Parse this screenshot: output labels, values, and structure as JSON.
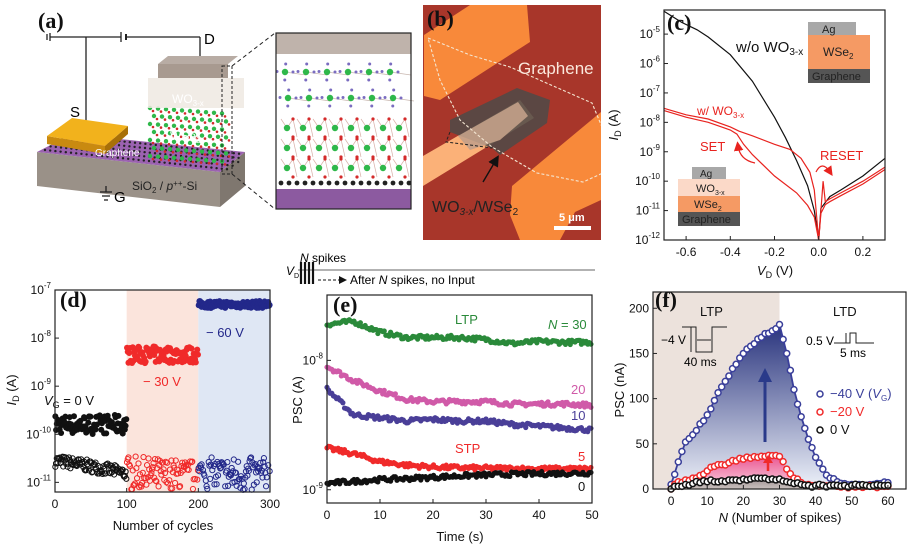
{
  "panels": {
    "a": {
      "label": "(a)",
      "terminals": {
        "drain": "D",
        "source": "S",
        "gate": "G"
      },
      "layers": {
        "wo3": "WO",
        "wo3_sub": "3-x",
        "wse2": "WSe",
        "wse2_sub": "2",
        "graphene": "Graphene",
        "substrate_a": "SiO",
        "substrate_b": "2",
        "substrate_c": " / ",
        "substrate_d": "p",
        "substrate_e": "++",
        "substrate_f": "-Si"
      },
      "colors": {
        "electrode": "#f2b21c",
        "substrate_top": "#9b62b0",
        "substrate_side": "#9a9188",
        "top_contact": "#a89a90",
        "w_atom": "#2fb84a",
        "se_atom": "#d42a2a",
        "o_atom": "#7a6cc0"
      }
    },
    "b": {
      "label": "(b)",
      "graphene_label": "Graphene",
      "flake_label": "WO",
      "flake_sub1": "3-x",
      "flake_mid": "/WSe",
      "flake_sub2": "2",
      "scale_bar": "5 μm",
      "colors": {
        "background": "#a8362a",
        "electrode": "#f8893a",
        "flake": "#4e4a48"
      }
    },
    "c": {
      "label": "(c)",
      "wo_label": "w/o WO",
      "wo_sub": "3-x",
      "w_label": "w/ WO",
      "w_sub": "3-x",
      "set": "SET",
      "reset": "RESET",
      "inset1": {
        "ag": "Ag",
        "wse2": "WSe",
        "wse2_sub": "2",
        "graphene": "Graphene"
      },
      "inset2": {
        "ag": "Ag",
        "wo3": "WO",
        "wo3_sub": "3-x",
        "wse2": "WSe",
        "wse2_sub": "2",
        "graphene": "Graphene"
      }
    },
    "d": {
      "label": "(d)",
      "vg0_a": "V",
      "vg0_sub": "G",
      "vg0_b": " = 0 V",
      "v30": "− 30 V",
      "v60": "− 60 V"
    },
    "e": {
      "label": "(e)",
      "header_vd": "V",
      "header_vd_sub": "D",
      "header_spikes_a": "N",
      "header_spikes_b": " spikes",
      "header_after_a": "After ",
      "header_after_b": "N",
      "header_after_c": " spikes, no Input",
      "ltp": "LTP",
      "stp": "STP",
      "n30_a": "N",
      "n30_b": " = 30",
      "n20": "20",
      "n10": "10",
      "n5": "5",
      "n0": "0"
    },
    "f": {
      "label": "(f)",
      "ltp": "LTP",
      "ltd": "LTD",
      "ltp_pulse_v": "−4 V",
      "ltp_pulse_t": "40 ms",
      "ltd_pulse_v": "0.5 V",
      "ltd_pulse_t": "5 ms",
      "legend": [
        {
          "a": "−40 V (",
          "i": "V",
          "sub": "G",
          "b": ")",
          "color": "#3a3f9a"
        },
        {
          "a": "−20 V",
          "color": "#f02a2a"
        },
        {
          "a": "  0 V",
          "color": "#111111"
        }
      ]
    }
  },
  "chart_data": [
    {
      "panel": "c",
      "type": "line",
      "xlabel": "V_D (V)",
      "ylabel": "I_D (A)",
      "xlabel_main": "V",
      "xlabel_sub": "D",
      "xlabel_unit": " (V)",
      "ylabel_main": "I",
      "ylabel_sub": "D",
      "ylabel_unit": " (A)",
      "xlim": [
        -0.7,
        0.3
      ],
      "ylim": [
        1e-12,
        6.6e-05
      ],
      "yscale": "log",
      "xticks": [
        "-0.6",
        "-0.4",
        "-0.2",
        "0.0",
        "0.2"
      ],
      "yticks": [
        -12,
        -11,
        -10,
        -9,
        -8,
        -7,
        -6,
        -5
      ],
      "series": [
        {
          "name": "w/o WO3-x",
          "color": "#111111",
          "x": [
            -0.7,
            -0.62,
            -0.55,
            -0.5,
            -0.4,
            -0.3,
            -0.2,
            -0.15,
            -0.1,
            -0.05,
            -0.02,
            0,
            0.01,
            0.05,
            0.1,
            0.2,
            0.3
          ],
          "y": [
            6e-05,
            2.5e-05,
            1.4e-05,
            8e-06,
            2e-06,
            2.5e-07,
            1.5e-08,
            3e-09,
            5e-10,
            7e-11,
            1e-11,
            1e-12,
            1.2e-11,
            3e-11,
            5e-11,
            1.5e-10,
            6e-10
          ]
        },
        {
          "name": "w/ WO3-x (SET branch)",
          "color": "#e8231f",
          "x": [
            -0.7,
            -0.6,
            -0.5,
            -0.4,
            -0.36,
            -0.3,
            -0.2,
            -0.13,
            -0.08,
            -0.04,
            -0.02,
            0
          ],
          "y": [
            3e-08,
            1.8e-08,
            1.3e-08,
            7e-09,
            5e-09,
            3.5e-09,
            1.8e-09,
            1.2e-09,
            6e-10,
            2e-10,
            5e-11,
            1e-12
          ]
        },
        {
          "name": "w/ WO3-x (low branch)",
          "color": "#e8231f",
          "x": [
            -0.7,
            -0.6,
            -0.5,
            -0.4,
            -0.37,
            -0.34,
            -0.3,
            -0.2,
            -0.1,
            -0.05,
            -0.02,
            0
          ],
          "y": [
            2.5e-08,
            1.5e-08,
            1e-08,
            5.5e-09,
            4e-09,
            1.8e-09,
            8e-10,
            1.5e-10,
            4e-11,
            1.5e-11,
            6e-12,
            1e-12
          ]
        },
        {
          "name": "w/ WO3-x (positive 1)",
          "color": "#e8231f",
          "x": [
            0,
            0.01,
            0.02,
            0.03,
            0.05,
            0.1,
            0.2,
            0.3
          ],
          "y": [
            1e-12,
            1e-11,
            1e-10,
            2e-11,
            2.5e-11,
            4e-11,
            1e-10,
            3e-10
          ]
        },
        {
          "name": "w/ WO3-x (positive 2)",
          "color": "#e8231f",
          "x": [
            0,
            0.01,
            0.03,
            0.05,
            0.1,
            0.2,
            0.3
          ],
          "y": [
            1e-12,
            8e-12,
            1.6e-11,
            2e-11,
            3.2e-11,
            8e-11,
            2.5e-10
          ]
        }
      ]
    },
    {
      "panel": "d",
      "type": "scatter",
      "xlabel": "Number of cycles",
      "ylabel": "I_D (A)",
      "ylabel_main": "I",
      "ylabel_sub": "D",
      "ylabel_unit": " (A)",
      "xlim": [
        0,
        300
      ],
      "ylim": [
        6.3e-12,
        1e-07
      ],
      "yscale": "log",
      "xticks": [
        "0",
        "100",
        "200",
        "300"
      ],
      "yticks": [
        -11,
        -10,
        -9,
        -8,
        -7
      ],
      "regions": [
        {
          "x": [
            100,
            200
          ],
          "color": "#fbe4dc"
        },
        {
          "x": [
            200,
            300
          ],
          "color": "#dfe7f4"
        }
      ],
      "segments": [
        {
          "gate": "0 V",
          "x": [
            0,
            100
          ],
          "color": "#111111",
          "filled_mean": 1.6e-10,
          "filled_spread_decades": 0.4,
          "open_start": 2.8e-11,
          "open_end": 1.5e-11,
          "open_spread_decades": 0.25
        },
        {
          "gate": "-30 V",
          "x": [
            100,
            200
          ],
          "color": "#f02a2a",
          "filled_mean": 4.5e-09,
          "filled_spread_decades": 0.35,
          "open_start": 1.5e-11,
          "open_end": 1.2e-11,
          "open_spread_decades": 0.75
        },
        {
          "gate": "-60 V",
          "x": [
            200,
            300
          ],
          "color": "#23288a",
          "filled_mean": 5e-08,
          "filled_spread_decades": 0.15,
          "open_start": 1.4e-11,
          "open_end": 1.4e-11,
          "open_spread_decades": 0.75
        }
      ]
    },
    {
      "panel": "e",
      "type": "scatter",
      "xlabel": "Time (s)",
      "ylabel": "PSC (A)",
      "xlim": [
        0,
        50
      ],
      "ylim": [
        7.9e-10,
        3.2e-08
      ],
      "yscale": "log",
      "xticks": [
        "0",
        "10",
        "20",
        "30",
        "40",
        "50"
      ],
      "yticks": [
        -9,
        -8
      ],
      "x": [
        0,
        5,
        10,
        15,
        20,
        25,
        30,
        35,
        40,
        45,
        50
      ],
      "series": [
        {
          "name": "N = 30",
          "color": "#2a8a3a",
          "values": [
            1.9e-08,
            2e-08,
            1.65e-08,
            1.5e-08,
            1.5e-08,
            1.5e-08,
            1.45e-08,
            1.35e-08,
            1.4e-08,
            1.38e-08,
            1.38e-08
          ]
        },
        {
          "name": "20",
          "color": "#d05aa8",
          "values": [
            9e-09,
            7e-09,
            5.8e-09,
            5e-09,
            4.8e-09,
            4.8e-09,
            4.8e-09,
            4.6e-09,
            4.6e-09,
            4.6e-09,
            4.5e-09
          ]
        },
        {
          "name": "10",
          "color": "#4a3f98",
          "values": [
            6e-09,
            3.8e-09,
            3.6e-09,
            3.4e-09,
            3.5e-09,
            3.4e-09,
            3.4e-09,
            3.2e-09,
            3.1e-09,
            3e-09,
            2.9e-09
          ]
        },
        {
          "name": "5",
          "color": "#f02a2a",
          "values": [
            2.1e-09,
            1.9e-09,
            1.65e-09,
            1.55e-09,
            1.5e-09,
            1.48e-09,
            1.47e-09,
            1.46e-09,
            1.45e-09,
            1.45e-09,
            1.45e-09
          ]
        },
        {
          "name": "0",
          "color": "#111111",
          "values": [
            1.12e-09,
            1.16e-09,
            1.2e-09,
            1.22e-09,
            1.25e-09,
            1.28e-09,
            1.3e-09,
            1.32e-09,
            1.33e-09,
            1.34e-09,
            1.35e-09
          ]
        }
      ]
    },
    {
      "panel": "f",
      "type": "scatter",
      "xlabel": "N (Number of spikes)",
      "ylabel": "PSC (nA)",
      "xlabel_i": "N",
      "xlabel_rest": " (Number of spikes)",
      "xlim": [
        -5,
        65
      ],
      "ylim": [
        0,
        218
      ],
      "xticks": [
        0,
        10,
        20,
        30,
        40,
        50,
        60
      ],
      "yticks": [
        0,
        50,
        100,
        150,
        200
      ],
      "ltp_region": [
        -5,
        30
      ],
      "ltp_region_color": "#ece2dc",
      "x": [
        0,
        2,
        4,
        6,
        8,
        10,
        12,
        14,
        16,
        18,
        20,
        22,
        24,
        26,
        28,
        30,
        32,
        34,
        36,
        38,
        40,
        42,
        44,
        46,
        48,
        50,
        52,
        54,
        56,
        58,
        60
      ],
      "series": [
        {
          "name": "-40 V (V_G)",
          "color": "#3a3f9a",
          "fill_top": "#1e2a78",
          "fill_bottom": "#eef2fa",
          "values": [
            5,
            30,
            52,
            60,
            72,
            82,
            98,
            113,
            125,
            138,
            150,
            158,
            166,
            172,
            175,
            182,
            150,
            110,
            80,
            55,
            35,
            22,
            12,
            8,
            6,
            5,
            5,
            4,
            5,
            6,
            7
          ]
        },
        {
          "name": "-20 V",
          "color": "#f02a2a",
          "fill_top": "#ec4e8c",
          "fill_bottom": "#fbd3e2",
          "values": [
            0,
            8,
            10,
            12,
            15,
            20,
            25,
            27,
            29,
            31,
            33,
            34,
            35,
            36,
            37,
            36,
            22,
            12,
            7,
            5,
            4,
            4,
            4,
            3,
            3,
            3,
            3,
            3,
            3,
            3,
            3
          ]
        },
        {
          "name": "0 V",
          "color": "#111111",
          "fill_top": "#9a9090",
          "fill_bottom": "#c8c0bc",
          "values": [
            0,
            3,
            5,
            6,
            7,
            8,
            8,
            9,
            10,
            10,
            11,
            11,
            12,
            12,
            11,
            11,
            8,
            6,
            5,
            4,
            4,
            4,
            4,
            4,
            4,
            4,
            4,
            4,
            4,
            4,
            4
          ]
        }
      ]
    }
  ]
}
